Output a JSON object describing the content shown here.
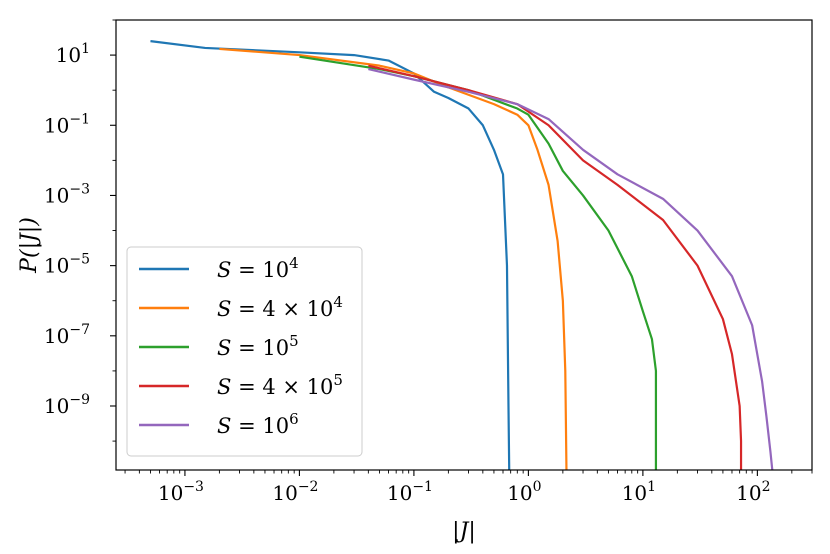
{
  "chart_data": {
    "type": "line",
    "title": "",
    "xlabel": "|J|",
    "ylabel": "P(|J|)",
    "xscale": "log",
    "yscale": "log",
    "xlim": [
      0.00025,
      300
    ],
    "ylim": [
      1.5e-11,
      100
    ],
    "grid": false,
    "legend_position": "lower-left",
    "x_ticks": [
      {
        "value": 0.001,
        "base": "10",
        "exp": "−3"
      },
      {
        "value": 0.01,
        "base": "10",
        "exp": "−2"
      },
      {
        "value": 0.1,
        "base": "10",
        "exp": "−1"
      },
      {
        "value": 1,
        "base": "10",
        "exp": "0"
      },
      {
        "value": 10,
        "base": "10",
        "exp": "1"
      },
      {
        "value": 100,
        "base": "10",
        "exp": "2"
      }
    ],
    "y_ticks": [
      {
        "value": 10,
        "base": "10",
        "exp": "1"
      },
      {
        "value": 0.1,
        "base": "10",
        "exp": "−1"
      },
      {
        "value": 0.001,
        "base": "10",
        "exp": "−3"
      },
      {
        "value": 1e-05,
        "base": "10",
        "exp": "−5"
      },
      {
        "value": 1e-07,
        "base": "10",
        "exp": "−7"
      },
      {
        "value": 1e-09,
        "base": "10",
        "exp": "−9"
      }
    ],
    "series": [
      {
        "name": "S = 10^4",
        "legend_parts": [
          "S",
          " = ",
          "10",
          "4"
        ],
        "color": "#1f77b4",
        "points": [
          [
            0.0005,
            25
          ],
          [
            0.0015,
            16
          ],
          [
            0.01,
            12
          ],
          [
            0.03,
            10
          ],
          [
            0.06,
            7
          ],
          [
            0.1,
            3
          ],
          [
            0.15,
            0.9
          ],
          [
            0.2,
            0.6
          ],
          [
            0.3,
            0.3
          ],
          [
            0.4,
            0.1
          ],
          [
            0.5,
            0.02
          ],
          [
            0.6,
            0.004
          ],
          [
            0.65,
            1e-05
          ],
          [
            0.67,
            1e-09
          ],
          [
            0.68,
            1.5e-11
          ]
        ]
      },
      {
        "name": "S = 4 × 10^4",
        "legend_parts": [
          "S",
          " = 4 × ",
          "10",
          "4"
        ],
        "color": "#ff7f0e",
        "points": [
          [
            0.002,
            15
          ],
          [
            0.01,
            10
          ],
          [
            0.05,
            5
          ],
          [
            0.1,
            3
          ],
          [
            0.2,
            1.2
          ],
          [
            0.5,
            0.4
          ],
          [
            0.8,
            0.2
          ],
          [
            1.0,
            0.1
          ],
          [
            1.2,
            0.02
          ],
          [
            1.5,
            0.002
          ],
          [
            1.8,
            5e-05
          ],
          [
            2.0,
            1e-06
          ],
          [
            2.1,
            1e-08
          ],
          [
            2.15,
            1.5e-11
          ]
        ]
      },
      {
        "name": "S = 10^5",
        "legend_parts": [
          "S",
          " = ",
          "10",
          "5"
        ],
        "color": "#2ca02c",
        "points": [
          [
            0.01,
            9
          ],
          [
            0.05,
            4
          ],
          [
            0.1,
            2.5
          ],
          [
            0.3,
            1
          ],
          [
            0.8,
            0.3
          ],
          [
            1.0,
            0.2
          ],
          [
            1.5,
            0.03
          ],
          [
            2.0,
            0.005
          ],
          [
            3.0,
            0.001
          ],
          [
            5.0,
            0.0001
          ],
          [
            8.0,
            5e-06
          ],
          [
            10.0,
            5e-07
          ],
          [
            12.0,
            8e-08
          ],
          [
            13.0,
            1e-08
          ],
          [
            13.0,
            1.5e-11
          ]
        ]
      },
      {
        "name": "S = 4 × 10^5",
        "legend_parts": [
          "S",
          " = 4 × ",
          "10",
          "5"
        ],
        "color": "#d62728",
        "points": [
          [
            0.04,
            5
          ],
          [
            0.1,
            2.5
          ],
          [
            0.3,
            1
          ],
          [
            0.8,
            0.4
          ],
          [
            1.5,
            0.1
          ],
          [
            3.0,
            0.01
          ],
          [
            6.0,
            0.002
          ],
          [
            15.0,
            0.0002
          ],
          [
            30.0,
            1e-05
          ],
          [
            50.0,
            3e-07
          ],
          [
            60.0,
            3e-08
          ],
          [
            70.0,
            1e-09
          ],
          [
            72.0,
            1e-10
          ],
          [
            72.0,
            1.5e-11
          ]
        ]
      },
      {
        "name": "S = 10^6",
        "legend_parts": [
          "S",
          " = ",
          "10",
          "6"
        ],
        "color": "#9467bd",
        "points": [
          [
            0.04,
            4
          ],
          [
            0.1,
            2
          ],
          [
            0.3,
            0.9
          ],
          [
            0.8,
            0.4
          ],
          [
            1.5,
            0.15
          ],
          [
            3.0,
            0.02
          ],
          [
            6.0,
            0.004
          ],
          [
            15.0,
            0.0008
          ],
          [
            30.0,
            0.0001
          ],
          [
            60.0,
            5e-06
          ],
          [
            90.0,
            2e-07
          ],
          [
            110.0,
            5e-09
          ],
          [
            120.0,
            5e-10
          ],
          [
            130.0,
            5e-11
          ],
          [
            135.0,
            1.5e-11
          ]
        ]
      }
    ]
  }
}
